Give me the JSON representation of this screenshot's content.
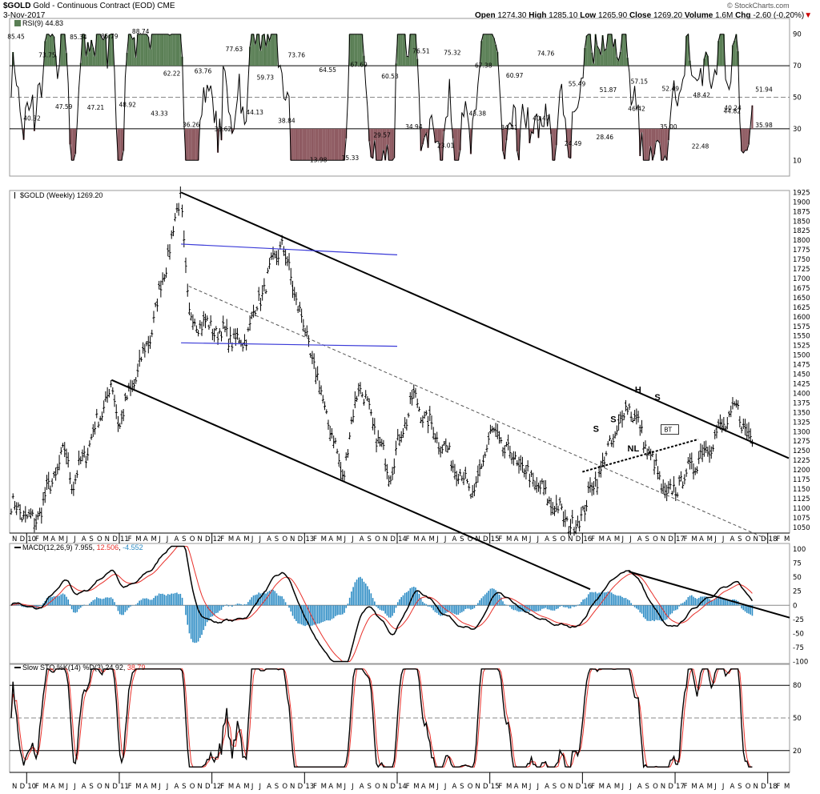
{
  "header": {
    "symbol": "$GOLD",
    "name": "Gold - Continuous Contract (EOD)",
    "exchange": "CME",
    "date": "3-Nov-2017",
    "open_label": "Open",
    "open": "1274.30",
    "high_label": "High",
    "high": "1285.10",
    "low_label": "Low",
    "low": "1265.90",
    "close_label": "Close",
    "close": "1269.20",
    "volume_label": "Volume",
    "volume": "1.6M",
    "chg_label": "Chg",
    "chg": "-2.60 (-0.20%)",
    "watermark": "© StockCharts.com"
  },
  "colors": {
    "rsi_pos": "#5a7f55",
    "rsi_neg": "#8e5a61",
    "macd_line": "#000000",
    "signal_line": "#e8302a",
    "hist": "#2b8bc4",
    "channel": "#000000",
    "flag": "#3a3ad8",
    "sto_k": "#000000",
    "sto_d": "#e8302a"
  },
  "chart_data": [
    {
      "type": "line",
      "title": "RSI(9)",
      "legend": "RSI(9) 44.83",
      "ylim": [
        0,
        100
      ],
      "yticks": [
        10,
        30,
        50,
        70,
        90
      ],
      "overbought": 70,
      "oversold": 30,
      "midline": 50,
      "peak_labels": [
        "85.45",
        "73.75",
        "85.34",
        "85.79",
        "88.74",
        "62.22",
        "63.76",
        "77.63",
        "59.73",
        "73.76",
        "64.55",
        "67.69",
        "60.53",
        "76.51",
        "75.32",
        "67.38",
        "60.97",
        "74.76",
        "55.49",
        "51.87",
        "57.15",
        "52.49",
        "48.42",
        "40.24",
        "51.94"
      ],
      "trough_labels": [
        "40.32",
        "47.59",
        "47.21",
        "48.92",
        "43.33",
        "36.26",
        "33.62",
        "44.13",
        "38.84",
        "13.98",
        "15.33",
        "29.57",
        "34.94",
        "23.01",
        "43.38",
        "34.41",
        "40.47",
        "24.49",
        "28.46",
        "46.42",
        "35.00",
        "22.48",
        "44.82",
        "35.98"
      ]
    },
    {
      "type": "ohlc",
      "title": "$GOLD (Weekly)",
      "legend": "$GOLD (Weekly) 1269.20",
      "ylim": [
        1035,
        1930
      ],
      "yticks": [
        1050,
        1075,
        1100,
        1125,
        1150,
        1175,
        1200,
        1225,
        1250,
        1275,
        1300,
        1325,
        1350,
        1375,
        1400,
        1425,
        1450,
        1475,
        1500,
        1525,
        1550,
        1575,
        1600,
        1625,
        1650,
        1675,
        1700,
        1725,
        1750,
        1775,
        1800,
        1825,
        1850,
        1875,
        1900,
        1925
      ],
      "x_labels": [
        "N",
        "D",
        "10",
        "F",
        "M",
        "A",
        "M",
        "J",
        "J",
        "A",
        "S",
        "O",
        "N",
        "D",
        "11",
        "F",
        "M",
        "A",
        "M",
        "J",
        "J",
        "A",
        "S",
        "O",
        "N",
        "D",
        "12",
        "F",
        "M",
        "A",
        "M",
        "J",
        "J",
        "A",
        "S",
        "O",
        "N",
        "D",
        "13",
        "F",
        "M",
        "A",
        "M",
        "J",
        "J",
        "A",
        "S",
        "O",
        "N",
        "D",
        "14",
        "F",
        "M",
        "A",
        "M",
        "J",
        "J",
        "A",
        "S",
        "O",
        "N",
        "D",
        "15",
        "F",
        "M",
        "A",
        "M",
        "J",
        "J",
        "A",
        "S",
        "O",
        "N",
        "D",
        "16",
        "F",
        "M",
        "A",
        "M",
        "J",
        "J",
        "A",
        "S",
        "O",
        "N",
        "D",
        "17",
        "F",
        "M",
        "A",
        "M",
        "J",
        "J",
        "A",
        "S",
        "O",
        "N",
        "D",
        "18",
        "F",
        "M"
      ],
      "key_points": [
        {
          "date": "2009-11",
          "value": 1110
        },
        {
          "date": "2010-02",
          "value": 1060
        },
        {
          "date": "2010-06",
          "value": 1250
        },
        {
          "date": "2010-07",
          "value": 1160
        },
        {
          "date": "2010-12",
          "value": 1420
        },
        {
          "date": "2011-01",
          "value": 1320
        },
        {
          "date": "2011-05",
          "value": 1550
        },
        {
          "date": "2011-09",
          "value": 1920
        },
        {
          "date": "2011-10",
          "value": 1600
        },
        {
          "date": "2012-05",
          "value": 1530
        },
        {
          "date": "2012-10",
          "value": 1795
        },
        {
          "date": "2013-06",
          "value": 1180
        },
        {
          "date": "2013-08",
          "value": 1430
        },
        {
          "date": "2013-12",
          "value": 1190
        },
        {
          "date": "2014-03",
          "value": 1390
        },
        {
          "date": "2014-11",
          "value": 1130
        },
        {
          "date": "2015-01",
          "value": 1300
        },
        {
          "date": "2015-12",
          "value": 1045
        },
        {
          "date": "2016-07",
          "value": 1375
        },
        {
          "date": "2016-12",
          "value": 1125
        },
        {
          "date": "2017-09",
          "value": 1360
        },
        {
          "date": "2017-11",
          "value": 1269
        }
      ],
      "annotations": [
        "H",
        "S",
        "S",
        "S",
        "NL",
        "BT"
      ]
    },
    {
      "type": "line",
      "title": "MACD(12,26,9)",
      "legend_name": "MACD(12,26,9)",
      "legend_macd": "7.955",
      "legend_signal": "12.506",
      "legend_hist": "-4.552",
      "ylim": [
        -105,
        110
      ],
      "yticks": [
        -100,
        -75,
        -50,
        -25,
        0,
        25,
        50,
        75,
        100
      ]
    },
    {
      "type": "line",
      "title": "Slow STO %K(14) %D(3)",
      "legend_name": "Slow STO %K(14) %D(3)",
      "legend_k": "24.92",
      "legend_d": "38.79",
      "ylim": [
        0,
        100
      ],
      "yticks": [
        20,
        50,
        80
      ],
      "x_labels": [
        "N",
        "D",
        "10",
        "F",
        "M",
        "A",
        "M",
        "J",
        "J",
        "A",
        "S",
        "O",
        "N",
        "D",
        "11",
        "F",
        "M",
        "A",
        "M",
        "J",
        "J",
        "A",
        "S",
        "O",
        "N",
        "D",
        "12",
        "F",
        "M",
        "A",
        "M",
        "J",
        "J",
        "A",
        "S",
        "O",
        "N",
        "D",
        "13",
        "F",
        "M",
        "A",
        "M",
        "J",
        "J",
        "A",
        "S",
        "O",
        "N",
        "D",
        "14",
        "F",
        "M",
        "A",
        "M",
        "J",
        "J",
        "A",
        "S",
        "O",
        "N",
        "D",
        "15",
        "F",
        "M",
        "A",
        "M",
        "J",
        "J",
        "A",
        "S",
        "O",
        "N",
        "D",
        "16",
        "F",
        "M",
        "A",
        "M",
        "J",
        "J",
        "A",
        "S",
        "O",
        "N",
        "D",
        "17",
        "F",
        "M",
        "A",
        "M",
        "J",
        "J",
        "A",
        "S",
        "O",
        "N",
        "D",
        "18",
        "F",
        "M"
      ]
    }
  ]
}
